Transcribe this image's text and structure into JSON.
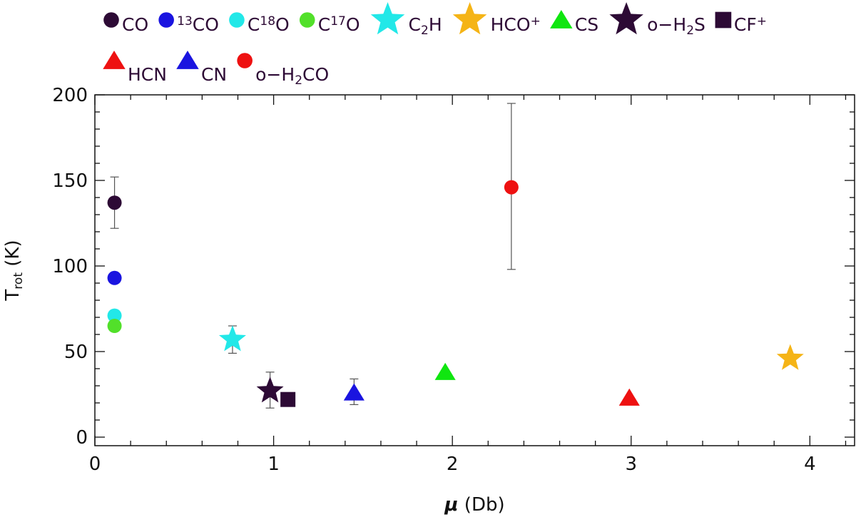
{
  "chart_data": {
    "type": "scatter",
    "xlabel": "μ (Db)",
    "ylabel": "T_rot (K)",
    "xlim": [
      0,
      4.25
    ],
    "ylim": [
      -5,
      200
    ],
    "x_ticks": [
      "0",
      "1",
      "2",
      "3",
      "4"
    ],
    "y_ticks": [
      "0",
      "50",
      "100",
      "150",
      "200"
    ],
    "x_tick_values": [
      0,
      1,
      2,
      3,
      4
    ],
    "y_tick_values": [
      0,
      50,
      100,
      150,
      200
    ],
    "grid": false,
    "legend_position": "top",
    "series": [
      {
        "name": "CO",
        "marker": "circle",
        "color": "#2d0a35",
        "x": 0.11,
        "y": 137,
        "err": [
          122,
          152
        ]
      },
      {
        "name": "13CO",
        "marker": "circle",
        "color": "#1a14e0",
        "x": 0.11,
        "y": 93
      },
      {
        "name": "C18O",
        "marker": "circle",
        "color": "#22e8e8",
        "x": 0.11,
        "y": 71
      },
      {
        "name": "C17O",
        "marker": "circle",
        "color": "#52e02a",
        "x": 0.11,
        "y": 65
      },
      {
        "name": "C2H",
        "marker": "star",
        "color": "#22e8e8",
        "x": 0.77,
        "y": 57,
        "err": [
          49,
          65
        ]
      },
      {
        "name": "HCO+",
        "marker": "star",
        "color": "#f5b416",
        "x": 3.89,
        "y": 46
      },
      {
        "name": "CS",
        "marker": "triangle",
        "color": "#10e610",
        "x": 1.96,
        "y": 38
      },
      {
        "name": "o-H2S",
        "marker": "star",
        "color": "#2d0a35",
        "x": 0.98,
        "y": 27,
        "err": [
          17,
          38
        ]
      },
      {
        "name": "CF+",
        "marker": "square",
        "color": "#2d0a35",
        "x": 1.08,
        "y": 22
      },
      {
        "name": "HCN",
        "marker": "triangle",
        "color": "#ee1111",
        "x": 2.99,
        "y": 23
      },
      {
        "name": "CN",
        "marker": "triangle",
        "color": "#1a14e0",
        "x": 1.45,
        "y": 26,
        "err": [
          19,
          34
        ]
      },
      {
        "name": "o-H2CO",
        "marker": "circle",
        "color": "#ee1111",
        "x": 2.33,
        "y": 146,
        "err": [
          98,
          195
        ]
      }
    ]
  }
}
